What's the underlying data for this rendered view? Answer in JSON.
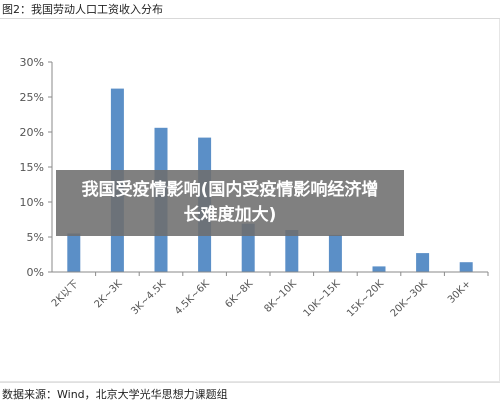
{
  "figure": {
    "title": "图2：我国劳动人口工资收入分布",
    "source": "数据来源：Wind，北京大学光华思想力课题组"
  },
  "overlay": {
    "headline": "我国受疫情影响(国内受疫情影响经济增长难度加大)"
  },
  "colors": {
    "bar": "#5b8fc7",
    "axis": "#8a8a8a",
    "tick_text": "#555555"
  },
  "chart_data": {
    "type": "bar",
    "categories": [
      "2K以下",
      "2K~3K",
      "3K~4.5K",
      "4.5K~6K",
      "6K~8K",
      "8K~10K",
      "10K~15K",
      "15K~20K",
      "20K~30K",
      "30K+"
    ],
    "values": [
      5.5,
      26.2,
      20.6,
      19.2,
      6.9,
      6.0,
      5.3,
      0.8,
      2.7,
      1.4
    ],
    "ylim": [
      0,
      30
    ],
    "yticks": [
      0,
      5,
      10,
      15,
      20,
      25,
      30
    ],
    "ytick_labels": [
      "0%",
      "5%",
      "10%",
      "15%",
      "20%",
      "25%",
      "30%"
    ],
    "grid": false,
    "legend": "none"
  }
}
